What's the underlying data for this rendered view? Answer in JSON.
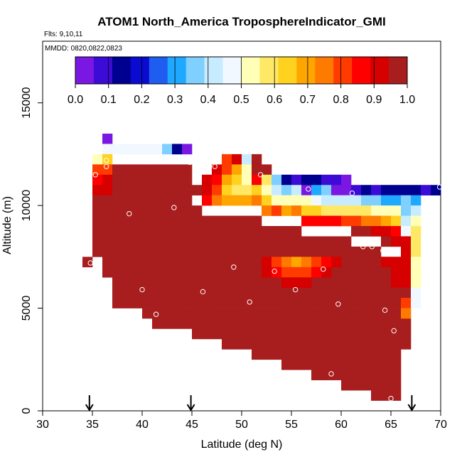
{
  "chart_data": {
    "type": "heatmap",
    "title": "ATOM1 North_America TroposphereIndicator_GMI",
    "flights_label": "Flts: 9,10,11",
    "dates_label": "MMDD: 0820,0822,0823",
    "xlabel": "Latitude (deg N)",
    "ylabel": "Altitude (m)",
    "xlim": [
      30,
      70
    ],
    "ylim": [
      0,
      18000
    ],
    "x_ticks": [
      "30",
      "35",
      "40",
      "45",
      "50",
      "55",
      "60",
      "65",
      "70"
    ],
    "y_ticks": [
      "0",
      "5000",
      "10000",
      "15000"
    ],
    "colorbar": {
      "ticks": [
        "0.0",
        "0.1",
        "0.2",
        "0.3",
        "0.4",
        "0.5",
        "0.6",
        "0.7",
        "0.8",
        "0.9",
        "1.0"
      ],
      "colors": [
        "#7a17e3",
        "#3d0bd6",
        "#000090",
        "#0a0ad0",
        "#1f5df0",
        "#1fa8ff",
        "#7fd0ff",
        "#c8ecff",
        "#f2f8ff",
        "#ffffb8",
        "#ffe866",
        "#ffd21f",
        "#ffa500",
        "#ff7a00",
        "#ff3b00",
        "#ff0000",
        "#d60000",
        "#a81d1d"
      ],
      "range": [
        0,
        1
      ]
    },
    "arrows_x": [
      34.7,
      44.9,
      67.1
    ],
    "columns": [
      {
        "lat": 34.5,
        "min": 7000,
        "max": 7500,
        "top": []
      },
      {
        "lat": 35.5,
        "min": 7500,
        "max": 11500,
        "top": [
          [
            12000,
            0.55
          ],
          [
            11500,
            0.78
          ],
          [
            11000,
            0.88
          ],
          [
            10500,
            0.93
          ],
          [
            10000,
            0.95
          ],
          [
            9500,
            0.97
          ]
        ]
      },
      {
        "lat": 36.5,
        "min": 6500,
        "max": 11000,
        "top": [
          [
            13000,
            0.02
          ],
          [
            12500,
            0.45
          ],
          [
            12000,
            0.65
          ],
          [
            11500,
            0.8
          ],
          [
            11000,
            0.9
          ],
          [
            10500,
            0.94
          ],
          [
            10000,
            0.96
          ]
        ]
      },
      {
        "lat": 37.5,
        "min": 5000,
        "max": 12000,
        "top": [
          [
            12500,
            0.46
          ]
        ]
      },
      {
        "lat": 38.5,
        "min": 5000,
        "max": 12000,
        "top": [
          [
            12500,
            0.47
          ]
        ]
      },
      {
        "lat": 39.5,
        "min": 5000,
        "max": 12000,
        "top": [
          [
            12500,
            0.47
          ]
        ]
      },
      {
        "lat": 40.5,
        "min": 4500,
        "max": 12000,
        "top": [
          [
            12500,
            0.46
          ]
        ]
      },
      {
        "lat": 41.5,
        "min": 4000,
        "max": 12000,
        "top": [
          [
            12500,
            0.45
          ]
        ]
      },
      {
        "lat": 42.5,
        "min": 4000,
        "max": 12000,
        "top": [
          [
            12500,
            0.35
          ]
        ]
      },
      {
        "lat": 43.5,
        "min": 4000,
        "max": 12000,
        "top": [
          [
            12500,
            0.14
          ]
        ]
      },
      {
        "lat": 44.5,
        "min": 4000,
        "max": 12000,
        "top": [
          [
            12500,
            0.05
          ]
        ]
      },
      {
        "lat": 45.5,
        "min": 3500,
        "max": 10000,
        "top": [
          [
            10500,
            0.95
          ]
        ]
      },
      {
        "lat": 46.5,
        "min": 3500,
        "max": 9500,
        "top": [
          [
            11000,
            0.94
          ],
          [
            10500,
            0.9
          ],
          [
            10000,
            0.86
          ]
        ]
      },
      {
        "lat": 47.5,
        "min": 3500,
        "max": 9500,
        "top": [
          [
            11500,
            0.93
          ],
          [
            11000,
            0.88
          ],
          [
            10500,
            0.8
          ],
          [
            10000,
            0.76
          ]
        ]
      },
      {
        "lat": 48.5,
        "min": 3000,
        "max": 9500,
        "top": [
          [
            12000,
            0.78
          ],
          [
            11500,
            0.82
          ],
          [
            11000,
            0.7
          ],
          [
            10500,
            0.65
          ],
          [
            10000,
            0.72
          ]
        ]
      },
      {
        "lat": 49.5,
        "min": 3000,
        "max": 9500,
        "top": [
          [
            12000,
            0.92
          ],
          [
            11500,
            0.7
          ],
          [
            11000,
            0.62
          ],
          [
            10500,
            0.6
          ],
          [
            10000,
            0.7
          ]
        ]
      },
      {
        "lat": 50.5,
        "min": 3000,
        "max": 9500,
        "top": [
          [
            12000,
            0.4
          ],
          [
            11500,
            0.55
          ],
          [
            11000,
            0.52
          ],
          [
            10500,
            0.56
          ],
          [
            10000,
            0.72
          ]
        ]
      },
      {
        "lat": 51.5,
        "min": 2500,
        "max": 9500,
        "top": [
          [
            12000,
            0.96
          ],
          [
            11500,
            0.97
          ],
          [
            11000,
            0.85
          ],
          [
            10500,
            0.63
          ],
          [
            10000,
            0.73
          ]
        ]
      },
      {
        "lat": 52.5,
        "min": 2500,
        "max": 9000,
        "top": [
          [
            11500,
            0.96
          ],
          [
            11000,
            0.58
          ],
          [
            10500,
            0.5
          ],
          [
            10000,
            0.62
          ],
          [
            9500,
            0.76
          ]
        ]
      },
      {
        "lat": 53.5,
        "min": 2500,
        "max": 9000,
        "top": [
          [
            11000,
            0.38
          ],
          [
            10500,
            0.4
          ],
          [
            10000,
            0.55
          ],
          [
            9500,
            0.8
          ]
        ]
      },
      {
        "lat": 54.5,
        "min": 2000,
        "max": 9000,
        "top": [
          [
            11000,
            0.12
          ],
          [
            10500,
            0.38
          ],
          [
            10000,
            0.5
          ],
          [
            9500,
            0.7
          ]
        ]
      },
      {
        "lat": 55.5,
        "min": 2000,
        "max": 9000,
        "top": [
          [
            11000,
            0.1
          ],
          [
            10500,
            0.42
          ],
          [
            10000,
            0.55
          ],
          [
            9500,
            0.76
          ]
        ]
      },
      {
        "lat": 56.5,
        "min": 2000,
        "max": 8500,
        "top": [
          [
            11000,
            0.15
          ],
          [
            10500,
            0.03
          ],
          [
            10000,
            0.5
          ],
          [
            9500,
            0.62
          ],
          [
            9000,
            0.85
          ]
        ]
      },
      {
        "lat": 57.5,
        "min": 1500,
        "max": 8500,
        "top": [
          [
            11000,
            0.12
          ],
          [
            10500,
            0.3
          ],
          [
            10000,
            0.45
          ],
          [
            9500,
            0.64
          ],
          [
            9000,
            0.88
          ]
        ]
      },
      {
        "lat": 58.5,
        "min": 1500,
        "max": 8500,
        "top": [
          [
            11000,
            0.1
          ],
          [
            10500,
            0.35
          ],
          [
            10000,
            0.42
          ],
          [
            9500,
            0.58
          ],
          [
            9000,
            0.88
          ]
        ]
      },
      {
        "lat": 59.5,
        "min": 1500,
        "max": 8500,
        "top": [
          [
            11000,
            0.07
          ],
          [
            10500,
            0.05
          ],
          [
            10000,
            0.42
          ],
          [
            9500,
            0.6
          ],
          [
            9000,
            0.86
          ]
        ]
      },
      {
        "lat": 60.5,
        "min": 1000,
        "max": 8500,
        "top": [
          [
            11000,
            0.04
          ],
          [
            10500,
            0.05
          ],
          [
            10000,
            0.42
          ],
          [
            9500,
            0.58
          ],
          [
            9000,
            0.83
          ]
        ]
      },
      {
        "lat": 61.5,
        "min": 1000,
        "max": 8000,
        "top": [
          [
            10500,
            0.1
          ],
          [
            10000,
            0.4
          ],
          [
            9500,
            0.57
          ],
          [
            9000,
            0.78
          ],
          [
            8500,
            0.95
          ]
        ]
      },
      {
        "lat": 62.5,
        "min": 1000,
        "max": 8000,
        "top": [
          [
            10500,
            0.12
          ],
          [
            10000,
            0.38
          ],
          [
            9500,
            0.56
          ],
          [
            9000,
            0.76
          ],
          [
            8500,
            0.95
          ]
        ]
      },
      {
        "lat": 63.5,
        "min": 500,
        "max": 8000,
        "top": [
          [
            10500,
            0.1
          ],
          [
            10000,
            0.35
          ],
          [
            9500,
            0.55
          ],
          [
            9000,
            0.75
          ],
          [
            8500,
            0.93
          ]
        ]
      },
      {
        "lat": 64.5,
        "min": 500,
        "max": 7500,
        "top": [
          [
            10500,
            0.12
          ],
          [
            10000,
            0.32
          ],
          [
            9500,
            0.52
          ],
          [
            9000,
            0.7
          ],
          [
            8500,
            0.9
          ],
          [
            8000,
            0.95
          ]
        ]
      },
      {
        "lat": 65.5,
        "min": 500,
        "max": 7500,
        "top": [
          [
            10500,
            0.14
          ],
          [
            10000,
            0.3
          ],
          [
            9500,
            0.5
          ],
          [
            9000,
            0.66
          ],
          [
            8500,
            0.85
          ],
          [
            8000,
            0.94
          ]
        ]
      },
      {
        "lat": 66.5,
        "min": 3000,
        "max": 4500,
        "top": [
          [
            10500,
            0.15
          ],
          [
            10000,
            0.35
          ],
          [
            9500,
            0.35
          ],
          [
            9000,
            0.42
          ],
          [
            8500,
            0.45
          ],
          [
            8000,
            0.9
          ],
          [
            7500,
            0.92
          ],
          [
            7000,
            0.93
          ],
          [
            6500,
            0.94
          ],
          [
            6000,
            0.94
          ],
          [
            5500,
            0.95
          ],
          [
            5000,
            0.78
          ],
          [
            4500,
            0.74
          ]
        ]
      },
      {
        "lat": 67.5,
        "min": 5000,
        "max": 5000,
        "top": [
          [
            10500,
            0.12
          ],
          [
            10000,
            0.32
          ],
          [
            9500,
            0.42
          ],
          [
            9000,
            0.55
          ],
          [
            8500,
            0.6
          ],
          [
            8000,
            0.6
          ],
          [
            7500,
            0.57
          ],
          [
            7000,
            0.53
          ],
          [
            6500,
            0.5
          ],
          [
            6000,
            0.5
          ],
          [
            5500,
            0.48
          ],
          [
            5000,
            0.47
          ]
        ]
      },
      {
        "lat": 68.5,
        "min": 0,
        "max": 0,
        "top": [
          [
            10500,
            0.1
          ]
        ]
      },
      {
        "lat": 69.5,
        "min": 0,
        "max": 0,
        "top": [
          [
            10500,
            0.12
          ]
        ]
      }
    ],
    "embedded_cells": [
      {
        "lat": 52.5,
        "alt": 7000,
        "v": 0.92
      },
      {
        "lat": 53.5,
        "alt": 7000,
        "v": 0.82
      },
      {
        "lat": 54.5,
        "alt": 7000,
        "v": 0.74
      },
      {
        "lat": 55.5,
        "alt": 7000,
        "v": 0.72
      },
      {
        "lat": 56.5,
        "alt": 7000,
        "v": 0.74
      },
      {
        "lat": 57.5,
        "alt": 7000,
        "v": 0.78
      },
      {
        "lat": 58.5,
        "alt": 7000,
        "v": 0.88
      },
      {
        "lat": 59.5,
        "alt": 7000,
        "v": 0.93
      },
      {
        "lat": 52.5,
        "alt": 6500,
        "v": 0.93
      },
      {
        "lat": 53.5,
        "alt": 6500,
        "v": 0.85
      },
      {
        "lat": 54.5,
        "alt": 6500,
        "v": 0.8
      },
      {
        "lat": 55.5,
        "alt": 6500,
        "v": 0.8
      },
      {
        "lat": 56.5,
        "alt": 6500,
        "v": 0.82
      },
      {
        "lat": 57.5,
        "alt": 6500,
        "v": 0.88
      },
      {
        "lat": 58.5,
        "alt": 6500,
        "v": 0.93
      },
      {
        "lat": 54.5,
        "alt": 6000,
        "v": 0.93
      },
      {
        "lat": 55.5,
        "alt": 6000,
        "v": 0.92
      },
      {
        "lat": 56.5,
        "alt": 6000,
        "v": 0.94
      },
      {
        "lat": 64.5,
        "alt": 7000,
        "v": 0.94
      },
      {
        "lat": 65.5,
        "alt": 7000,
        "v": 0.93
      },
      {
        "lat": 65.5,
        "alt": 6500,
        "v": 0.94
      },
      {
        "lat": 65.5,
        "alt": 6000,
        "v": 0.94
      },
      {
        "lat": 65.5,
        "alt": 5500,
        "v": 0.95
      },
      {
        "lat": 35.5,
        "alt": 9000,
        "v": 0.96
      },
      {
        "lat": 36.5,
        "alt": 9500,
        "v": 0.97
      }
    ],
    "flight_points": [
      [
        35.3,
        12700
      ],
      [
        36.3,
        12800
      ],
      [
        36.4,
        12200
      ],
      [
        36.4,
        11900
      ],
      [
        35.3,
        11500
      ],
      [
        34.8,
        7200
      ],
      [
        36.5,
        6100
      ],
      [
        37.6,
        4600
      ],
      [
        38.7,
        9600
      ],
      [
        40.0,
        5900
      ],
      [
        41.4,
        4700
      ],
      [
        43.2,
        9900
      ],
      [
        44.8,
        12100
      ],
      [
        46.1,
        5800
      ],
      [
        47.3,
        11900
      ],
      [
        49.2,
        7000
      ],
      [
        50.8,
        5300
      ],
      [
        51.9,
        11500
      ],
      [
        53.3,
        6800
      ],
      [
        55.4,
        5900
      ],
      [
        56.7,
        10800
      ],
      [
        58.2,
        6900
      ],
      [
        59.7,
        5200
      ],
      [
        61.1,
        10600
      ],
      [
        62.2,
        8000
      ],
      [
        63.1,
        8000
      ],
      [
        64.4,
        4900
      ],
      [
        64.2,
        7800
      ],
      [
        65.3,
        3900
      ],
      [
        65.0,
        600
      ],
      [
        59.0,
        1800
      ],
      [
        69.9,
        10900
      ]
    ]
  }
}
